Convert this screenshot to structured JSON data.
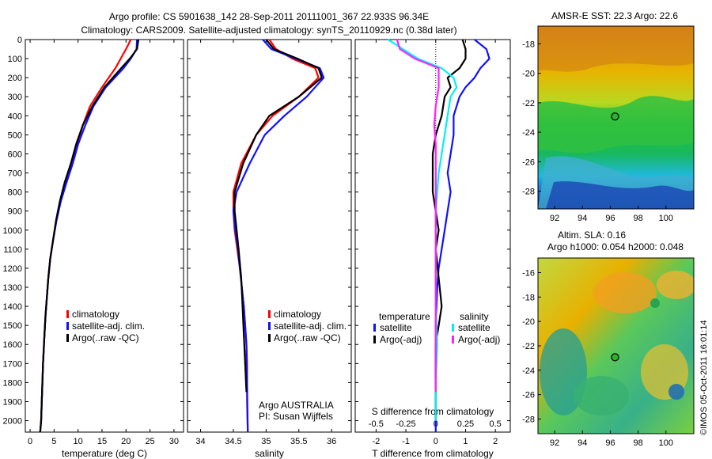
{
  "header": {
    "title_line1": "Argo profile: CS 5901638_142 28-Sep-2011 20111001_367 22.933S 96.34E",
    "title_line2": "Climatology: CARS2009. Satellite-adjusted climatology: synTS_20110929.nc (0.38d later)"
  },
  "colors": {
    "climatology": "#ff0000",
    "satellite": "#1010ff",
    "argo": "#000000",
    "salinity_satellite": "#00f0f0",
    "salinity_argo": "#ff20ff"
  },
  "chart_data": [
    {
      "type": "line",
      "id": "temperature",
      "xlabel": "temperature (deg C)",
      "xlim": [
        -1,
        32
      ],
      "ylim": [
        0,
        2060
      ],
      "y_reversed": true,
      "xticks": [
        0,
        5,
        10,
        15,
        20,
        25,
        30
      ],
      "yticks": [
        0,
        100,
        200,
        300,
        400,
        500,
        600,
        700,
        800,
        900,
        1000,
        1100,
        1200,
        1300,
        1400,
        1500,
        1600,
        1700,
        1800,
        1900,
        2000
      ],
      "legend": [
        "climatology",
        "satellite-adj. clim.",
        "Argo(..raw -QC)"
      ],
      "series": [
        {
          "name": "climatology",
          "color": "#ff0000",
          "x": [
            21.0,
            20.0,
            17.8,
            15.0,
            12.5,
            11.0,
            9.8,
            8.6,
            7.4,
            6.3,
            5.5,
            4.8,
            4.2,
            3.8,
            3.5,
            3.2,
            3.0,
            2.7,
            2.5,
            2.3,
            2.1
          ],
          "y": [
            0,
            50,
            150,
            250,
            350,
            450,
            550,
            650,
            750,
            850,
            950,
            1050,
            1150,
            1250,
            1350,
            1450,
            1550,
            1700,
            1850,
            2000,
            2060
          ]
        },
        {
          "name": "satellite-adj. clim.",
          "color": "#1010ff",
          "x": [
            22.3,
            22.2,
            21.0,
            19.5,
            15.8,
            13.2,
            11.5,
            10.0,
            8.9,
            7.6,
            6.4,
            5.5,
            4.8,
            4.2,
            3.8,
            3.5,
            3.2,
            3.0,
            2.7,
            2.5,
            2.3,
            2.1
          ],
          "y": [
            0,
            50,
            100,
            150,
            250,
            350,
            450,
            550,
            650,
            750,
            850,
            950,
            1050,
            1150,
            1250,
            1350,
            1450,
            1550,
            1700,
            1850,
            2000,
            2060
          ]
        },
        {
          "name": "Argo(..raw -QC)",
          "color": "#000000",
          "x": [
            22.6,
            22.3,
            20.8,
            19.0,
            15.5,
            13.0,
            11.0,
            9.6,
            8.5,
            7.2,
            6.2,
            5.4,
            4.8,
            4.2,
            3.8,
            3.5,
            3.2,
            3.0,
            2.7,
            2.5,
            2.3,
            2.1
          ],
          "y": [
            0,
            50,
            100,
            150,
            250,
            350,
            450,
            550,
            650,
            750,
            850,
            950,
            1050,
            1150,
            1250,
            1350,
            1450,
            1550,
            1700,
            1850,
            2000,
            2060
          ]
        }
      ]
    },
    {
      "type": "line",
      "id": "salinity",
      "xlabel": "salinity",
      "xlim": [
        33.8,
        36.3
      ],
      "ylim": [
        0,
        2060
      ],
      "y_reversed": true,
      "xticks": [
        34,
        34.5,
        35,
        35.5,
        36
      ],
      "xtick_labels": [
        "34",
        "34.5",
        "35",
        "35.5",
        "36"
      ],
      "legend": [
        "climatology",
        "satellite-adj. clim.",
        "Argo(..raw -QC)"
      ],
      "annotation": [
        "Argo AUSTRALIA",
        "PI: Susan Wijffels"
      ],
      "series": [
        {
          "name": "climatology",
          "color": "#ff0000",
          "x": [
            35.05,
            35.15,
            35.4,
            35.75,
            35.8,
            35.5,
            35.1,
            34.85,
            34.62,
            34.5,
            34.5,
            34.52,
            34.56,
            34.6,
            34.63,
            34.66,
            34.68,
            34.7,
            34.71,
            34.71,
            34.72
          ],
          "y": [
            0,
            50,
            100,
            150,
            200,
            300,
            400,
            500,
            650,
            800,
            900,
            1000,
            1100,
            1200,
            1300,
            1400,
            1500,
            1600,
            1700,
            1900,
            2060
          ]
        },
        {
          "name": "satellite-adj. clim.",
          "color": "#1010ff",
          "x": [
            34.95,
            35.08,
            35.45,
            35.82,
            35.88,
            35.62,
            35.28,
            34.98,
            34.75,
            34.55,
            34.5,
            34.53,
            34.57,
            34.6,
            34.63,
            34.66,
            34.68,
            34.7,
            34.71,
            34.72
          ],
          "y": [
            0,
            50,
            100,
            150,
            200,
            300,
            400,
            500,
            650,
            800,
            900,
            1000,
            1100,
            1200,
            1300,
            1400,
            1500,
            1600,
            1800,
            2060
          ]
        },
        {
          "name": "Argo(..raw -QC)",
          "color": "#000000",
          "x": [
            35.0,
            35.12,
            35.48,
            35.8,
            35.85,
            35.5,
            35.05,
            34.85,
            34.65,
            34.52,
            34.52,
            34.55,
            34.58,
            34.62,
            34.64,
            34.66,
            34.68,
            34.7
          ],
          "y": [
            0,
            50,
            100,
            150,
            200,
            300,
            400,
            500,
            650,
            800,
            900,
            1000,
            1100,
            1250,
            1400,
            1550,
            1700,
            1850
          ]
        }
      ]
    },
    {
      "type": "line",
      "id": "difference",
      "xlabel": "T difference from climatology",
      "xlabel_top": "S difference from climatology",
      "xlim": [
        -2.7,
        2.5
      ],
      "ylim": [
        0,
        2060
      ],
      "y_reversed": true,
      "xticks": [
        -2,
        -1,
        0,
        1,
        2
      ],
      "xticks_s": [
        -0.5,
        -0.25,
        0,
        0.25,
        0.5
      ],
      "xtick_s_labels": [
        "-0.5",
        "-0.25",
        "0",
        "0.25",
        "0.5"
      ],
      "legend_temperature_title": "temperature",
      "legend_salinity_title": "salinity",
      "legend": [
        "satellite",
        "Argo(-adj)",
        "satellite",
        "Argo(-adj)"
      ],
      "series": [
        {
          "name": "temperature satellite",
          "color": "#1010ff",
          "x": [
            1.3,
            1.7,
            1.8,
            1.5,
            1.3,
            1.0,
            0.8,
            0.6,
            0.6,
            0.5,
            0.4,
            0.5,
            0.4,
            0.3,
            0.2,
            0.1,
            0.05,
            0.0,
            0.0,
            0.0,
            0.0,
            0.0
          ],
          "y": [
            0,
            50,
            100,
            150,
            200,
            250,
            300,
            400,
            500,
            600,
            700,
            800,
            900,
            1000,
            1100,
            1200,
            1300,
            1500,
            1600,
            1800,
            2000,
            2060
          ]
        },
        {
          "name": "temperature Argo(-adj)",
          "color": "#000000",
          "x": [
            0.9,
            1.0,
            1.0,
            0.8,
            0.4,
            0.5,
            0.3,
            0.2,
            0.0,
            -0.1,
            -0.1,
            -0.1,
            0.0,
            0.1,
            0.0,
            0.1,
            0.2,
            0.0,
            0.0,
            0.0
          ],
          "y": [
            0,
            50,
            100,
            150,
            200,
            250,
            300,
            400,
            500,
            600,
            700,
            800,
            900,
            1000,
            1100,
            1250,
            1400,
            1600,
            1800,
            2000
          ]
        },
        {
          "name": "salinity satellite",
          "color": "#00f0f0",
          "x": [
            -1.6,
            -1.1,
            -0.6,
            0.2,
            0.6,
            0.7,
            0.5,
            0.4,
            0.3,
            0.2,
            0.1,
            0.05,
            0.0,
            0.0,
            0.0,
            0.0,
            0.05,
            0.0,
            0.0
          ],
          "y": [
            0,
            50,
            100,
            150,
            200,
            250,
            300,
            400,
            500,
            600,
            700,
            800,
            900,
            1000,
            1200,
            1400,
            1600,
            1800,
            2000
          ]
        },
        {
          "name": "salinity Argo(-adj)",
          "color": "#ff20ff",
          "x": [
            -1.3,
            -1.2,
            -0.7,
            0.1,
            0.1,
            0.0,
            -0.05,
            0.0,
            0.0,
            0.0,
            0.0,
            0.0,
            0.0,
            0.0
          ],
          "y": [
            0,
            50,
            100,
            150,
            250,
            350,
            450,
            550,
            700,
            850,
            1000,
            1200,
            1500,
            1850
          ]
        }
      ]
    },
    {
      "type": "heatmap",
      "id": "sst_map",
      "title": "AMSR-E SST: 22.3 Argo: 22.6",
      "xticks": [
        92,
        94,
        96,
        98,
        100
      ],
      "yticks": [
        -18,
        -20,
        -22,
        -24,
        -26,
        -28
      ],
      "xlim": [
        90.8,
        102
      ],
      "ylim": [
        -29.2,
        -16.8
      ],
      "float_position": {
        "lon": 96.34,
        "lat": -22.93
      }
    },
    {
      "type": "heatmap",
      "id": "sla_map",
      "title_line1": "Altim. SLA: 0.16",
      "title_line2": "Argo h1000: 0.054 h2000: 0.048",
      "xticks": [
        92,
        94,
        96,
        98,
        100
      ],
      "yticks": [
        -16,
        -18,
        -20,
        -22,
        -24,
        -26,
        -28
      ],
      "xlim": [
        90.8,
        102
      ],
      "ylim": [
        -29.2,
        -14.8
      ],
      "float_position": {
        "lon": 96.34,
        "lat": -22.93
      }
    }
  ],
  "footer": {
    "watermark": "©IMOS 05-Oct-2011 16:01:14"
  }
}
